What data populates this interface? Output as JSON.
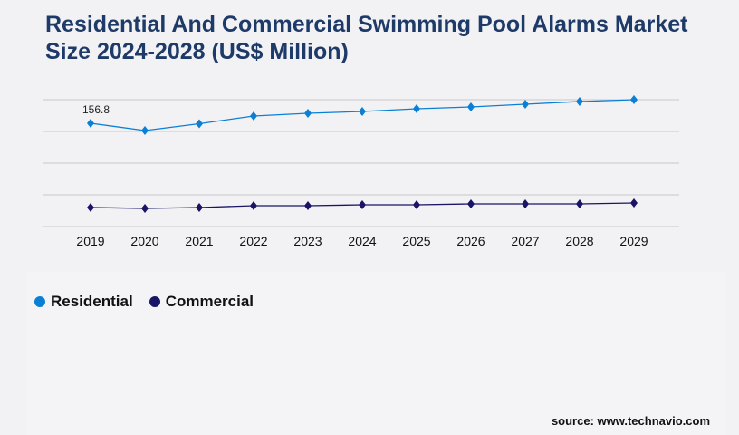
{
  "title": "Residential And Commercial Swimming Pool Alarms Market Size 2024-2028 (US$ Million)",
  "source": "source: www.technavio.com",
  "chart_data": {
    "type": "line",
    "title": "Residential And Commercial Swimming Pool Alarms Market Size 2024-2028 (US$ Million)",
    "categories": [
      "2019",
      "2020",
      "2021",
      "2022",
      "2023",
      "2024",
      "2025",
      "2026",
      "2027",
      "2028",
      "2029"
    ],
    "series": [
      {
        "name": "Residential",
        "color": "#0a7fd6",
        "values": [
          156.8,
          145.8,
          156.1,
          167.8,
          171.9,
          174.6,
          178.8,
          181.5,
          185.6,
          189.8,
          192.5
        ]
      },
      {
        "name": "Commercial",
        "color": "#1a1466",
        "values": [
          28.9,
          27.5,
          28.9,
          31.6,
          31.6,
          33.0,
          33.0,
          34.4,
          34.4,
          34.4,
          35.8
        ]
      }
    ],
    "data_labels": [
      {
        "series": "Residential",
        "category": "2019",
        "text": "156.8"
      }
    ],
    "ylim": [
      0,
      192.5
    ],
    "grid": true,
    "legend": "bottom-left",
    "marker": "diamond"
  }
}
